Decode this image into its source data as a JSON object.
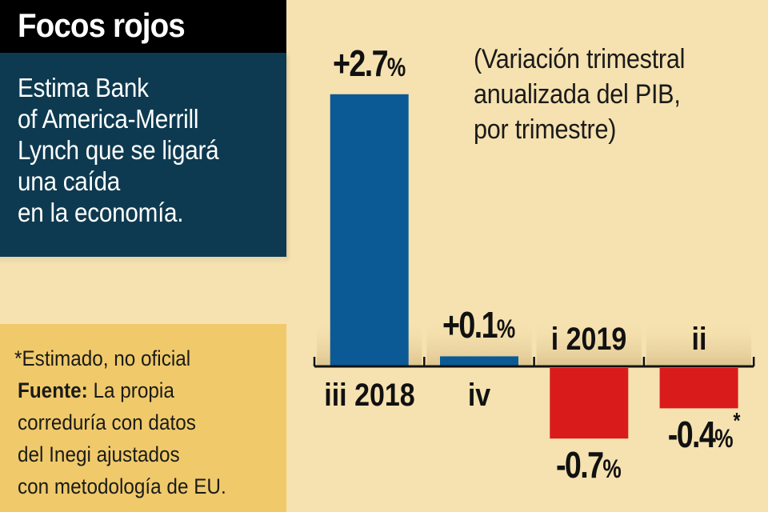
{
  "header": {
    "title": "Focos rojos"
  },
  "summary": {
    "text": "Estima Bank\nof America-Merrill\nLynch que se ligará\nuna caída\nen la economía."
  },
  "notes": {
    "footnote": "*Estimado, no oficial",
    "source_label": "Fuente:",
    "source_lines": [
      "La propia",
      "correduría con datos",
      "del Inegi ajustados",
      "con metodología de EU."
    ]
  },
  "colors": {
    "positive": "#0b5a96",
    "negative": "#d91b1b",
    "header_bg": "#000000",
    "summary_bg": "#0d3a50",
    "notes_bg": "#f0ca6a",
    "page_bg": "#f6e2b0"
  },
  "chart_data": {
    "type": "bar",
    "title": "Focos rojos",
    "subtitle": "(Variación trimestral\nanualizada del PIB,\npor trimestre)",
    "xlabel": "",
    "ylabel": "Variación trimestral anualizada del PIB (%)",
    "categories": [
      "iii 2018",
      "iv",
      "i 2019",
      "ii"
    ],
    "values": [
      2.7,
      0.1,
      -0.7,
      -0.4
    ],
    "value_labels": [
      "+2.7",
      "+0.1",
      "-0.7",
      "-0.4"
    ],
    "value_suffix": "%",
    "estimated": [
      false,
      false,
      false,
      true
    ],
    "estimated_marker": "*",
    "ylim": [
      -0.8,
      2.9
    ],
    "grid": false,
    "legend": "none"
  }
}
